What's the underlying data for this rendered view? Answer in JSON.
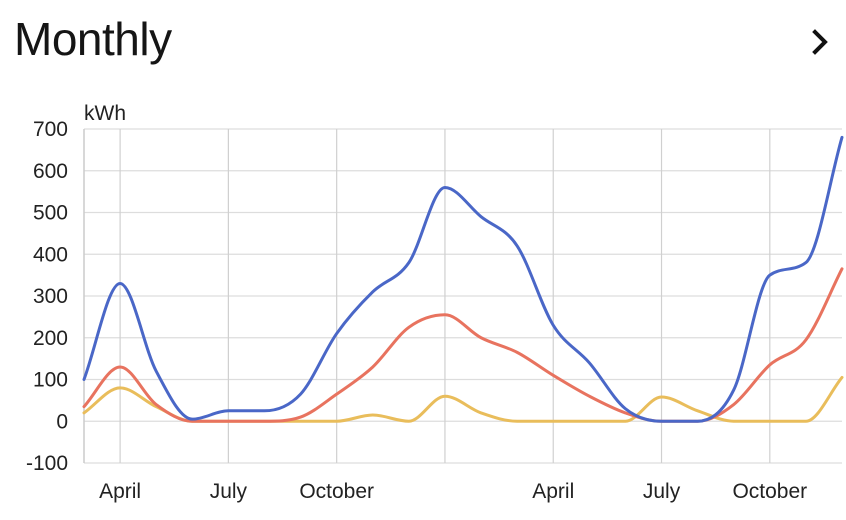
{
  "header": {
    "title": "Monthly",
    "next_icon": "chevron-right-icon"
  },
  "chart_data": {
    "type": "line",
    "ylabel": "kWh",
    "ylim": [
      -100,
      700
    ],
    "yticks": [
      700,
      600,
      500,
      400,
      300,
      200,
      100,
      0,
      -100
    ],
    "x_tick_labels": [
      {
        "label": "April",
        "month": 1
      },
      {
        "label": "July",
        "month": 4
      },
      {
        "label": "October",
        "month": 7
      },
      {
        "label": "April",
        "month": 13
      },
      {
        "label": "July",
        "month": 16
      },
      {
        "label": "October",
        "month": 19
      }
    ],
    "x_gridlines": [
      1,
      4,
      7,
      10,
      13,
      16,
      19
    ],
    "x_range": [
      0,
      21
    ],
    "grid": true,
    "series": [
      {
        "color": "#4A67C7",
        "x": [
          0,
          1,
          2,
          3,
          4,
          5,
          6,
          7,
          8,
          9,
          10,
          11,
          12,
          13,
          14,
          15,
          16,
          17,
          18,
          19,
          20,
          21
        ],
        "values": [
          100,
          330,
          120,
          5,
          25,
          25,
          65,
          210,
          310,
          380,
          560,
          490,
          420,
          230,
          140,
          30,
          0,
          0,
          75,
          350,
          380,
          680
        ]
      },
      {
        "color": "#E8735F",
        "x": [
          0,
          1,
          2,
          3,
          4,
          5,
          6,
          7,
          8,
          9,
          10,
          11,
          12,
          13,
          14,
          15,
          16,
          17,
          18,
          19,
          20,
          21
        ],
        "values": [
          35,
          130,
          40,
          0,
          0,
          0,
          10,
          65,
          130,
          225,
          255,
          200,
          165,
          110,
          60,
          20,
          0,
          0,
          40,
          135,
          195,
          365
        ]
      },
      {
        "color": "#E9BD5B",
        "x": [
          0,
          1,
          2,
          3,
          4,
          5,
          6,
          7,
          8,
          9,
          10,
          11,
          12,
          13,
          14,
          15,
          16,
          17,
          18,
          19,
          20,
          21
        ],
        "values": [
          20,
          80,
          35,
          0,
          0,
          0,
          0,
          0,
          15,
          0,
          60,
          20,
          0,
          0,
          0,
          0,
          58,
          25,
          0,
          0,
          0,
          105
        ]
      }
    ]
  }
}
